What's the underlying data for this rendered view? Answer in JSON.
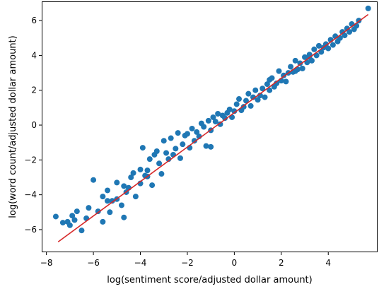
{
  "chart_data": {
    "type": "scatter",
    "title": "",
    "xlabel": "log(sentiment score/adjusted dollar amount)",
    "ylabel": "log(word count/adjusted dollar amount)",
    "xlim": [
      -8.2,
      6.1
    ],
    "ylim": [
      -7.3,
      7.1
    ],
    "x_ticks": [
      -8,
      -6,
      -4,
      -2,
      0,
      2,
      4
    ],
    "x_tick_labels": [
      "−8",
      "−6",
      "−4",
      "−2",
      "0",
      "2",
      "4"
    ],
    "y_ticks": [
      -6,
      -4,
      -2,
      0,
      2,
      4,
      6
    ],
    "y_tick_labels": [
      "−6",
      "−4",
      "−2",
      "0",
      "2",
      "4",
      "6"
    ],
    "grid": false,
    "series": [
      {
        "color": "#1f77b4",
        "marker": "circle",
        "points": [
          [
            -7.6,
            -5.25
          ],
          [
            -7.3,
            -5.6
          ],
          [
            -7.1,
            -5.55
          ],
          [
            -7.0,
            -5.75
          ],
          [
            -6.9,
            -5.2
          ],
          [
            -6.8,
            -5.45
          ],
          [
            -6.7,
            -4.95
          ],
          [
            -6.5,
            -6.05
          ],
          [
            -6.3,
            -5.35
          ],
          [
            -6.2,
            -4.75
          ],
          [
            -6.0,
            -3.15
          ],
          [
            -5.8,
            -4.95
          ],
          [
            -5.6,
            -5.55
          ],
          [
            -5.6,
            -4.1
          ],
          [
            -5.4,
            -3.75
          ],
          [
            -5.3,
            -5.0
          ],
          [
            -5.2,
            -4.35
          ],
          [
            -5.0,
            -4.25
          ],
          [
            -5.0,
            -3.3
          ],
          [
            -4.8,
            -4.6
          ],
          [
            -4.7,
            -3.5
          ],
          [
            -4.7,
            -5.3
          ],
          [
            -4.5,
            -3.6
          ],
          [
            -4.4,
            -3.0
          ],
          [
            -4.3,
            -2.75
          ],
          [
            -4.2,
            -4.1
          ],
          [
            -4.0,
            -2.55
          ],
          [
            -4.0,
            -3.35
          ],
          [
            -3.9,
            -1.3
          ],
          [
            -3.8,
            -2.9
          ],
          [
            -3.7,
            -2.6
          ],
          [
            -3.6,
            -1.95
          ],
          [
            -3.5,
            -3.45
          ],
          [
            -3.4,
            -1.7
          ],
          [
            -3.3,
            -1.5
          ],
          [
            -3.2,
            -2.2
          ],
          [
            -3.1,
            -2.8
          ],
          [
            -3.0,
            -0.9
          ],
          [
            -2.9,
            -1.6
          ],
          [
            -2.8,
            -1.95
          ],
          [
            -2.7,
            -0.75
          ],
          [
            -2.6,
            -1.7
          ],
          [
            -2.5,
            -1.35
          ],
          [
            -2.4,
            -0.45
          ],
          [
            -2.3,
            -1.9
          ],
          [
            -2.2,
            -1.1
          ],
          [
            -2.1,
            -0.6
          ],
          [
            -2.0,
            -0.5
          ],
          [
            -1.9,
            -1.3
          ],
          [
            -1.8,
            -0.2
          ],
          [
            -1.7,
            -0.9
          ],
          [
            -1.6,
            -0.4
          ],
          [
            -1.5,
            -0.65
          ],
          [
            -1.4,
            0.1
          ],
          [
            -1.3,
            -0.1
          ],
          [
            -1.2,
            -1.2
          ],
          [
            -1.1,
            0.25
          ],
          [
            -1.0,
            -0.3
          ],
          [
            -0.9,
            0.45
          ],
          [
            -0.8,
            0.2
          ],
          [
            -0.7,
            0.65
          ],
          [
            -0.6,
            0.05
          ],
          [
            -0.5,
            0.55
          ],
          [
            -0.4,
            0.4
          ],
          [
            -0.3,
            0.7
          ],
          [
            -0.2,
            0.9
          ],
          [
            -0.1,
            0.45
          ],
          [
            0.0,
            0.8
          ],
          [
            0.1,
            1.2
          ],
          [
            0.2,
            1.5
          ],
          [
            0.3,
            0.85
          ],
          [
            0.4,
            1.05
          ],
          [
            0.5,
            1.4
          ],
          [
            0.6,
            1.8
          ],
          [
            0.7,
            1.1
          ],
          [
            0.8,
            1.6
          ],
          [
            0.9,
            2.0
          ],
          [
            1.0,
            1.45
          ],
          [
            1.1,
            1.7
          ],
          [
            1.2,
            2.1
          ],
          [
            1.3,
            1.6
          ],
          [
            1.4,
            2.35
          ],
          [
            1.5,
            2.0
          ],
          [
            1.6,
            2.7
          ],
          [
            1.7,
            2.2
          ],
          [
            1.8,
            2.4
          ],
          [
            1.9,
            3.1
          ],
          [
            2.0,
            2.55
          ],
          [
            2.1,
            2.85
          ],
          [
            2.2,
            2.5
          ],
          [
            2.3,
            3.0
          ],
          [
            2.4,
            3.35
          ],
          [
            2.5,
            3.05
          ],
          [
            2.6,
            3.7
          ],
          [
            2.7,
            3.2
          ],
          [
            2.8,
            3.55
          ],
          [
            2.9,
            3.25
          ],
          [
            3.0,
            3.9
          ],
          [
            3.1,
            3.6
          ],
          [
            3.2,
            4.05
          ],
          [
            3.3,
            3.7
          ],
          [
            3.4,
            4.35
          ],
          [
            3.5,
            4.0
          ],
          [
            3.6,
            4.55
          ],
          [
            3.7,
            4.2
          ],
          [
            3.8,
            4.45
          ],
          [
            3.9,
            4.65
          ],
          [
            4.0,
            4.4
          ],
          [
            4.1,
            4.9
          ],
          [
            4.2,
            4.6
          ],
          [
            4.3,
            5.1
          ],
          [
            4.4,
            4.8
          ],
          [
            4.5,
            5.0
          ],
          [
            4.6,
            5.35
          ],
          [
            4.7,
            5.15
          ],
          [
            4.8,
            5.55
          ],
          [
            4.9,
            5.35
          ],
          [
            5.0,
            5.8
          ],
          [
            5.1,
            5.5
          ],
          [
            5.2,
            5.7
          ],
          [
            5.3,
            6.0
          ],
          [
            5.7,
            6.7
          ],
          [
            3.2,
            3.9
          ],
          [
            -1.0,
            -1.25
          ],
          [
            2.6,
            3.1
          ],
          [
            -3.7,
            -2.95
          ],
          [
            -4.6,
            -3.85
          ],
          [
            -5.4,
            -4.35
          ],
          [
            1.5,
            2.6
          ]
        ]
      }
    ],
    "fit_line": {
      "color": "#d62728",
      "x": [
        -7.5,
        5.7
      ],
      "y": [
        -6.7,
        6.35
      ]
    }
  }
}
